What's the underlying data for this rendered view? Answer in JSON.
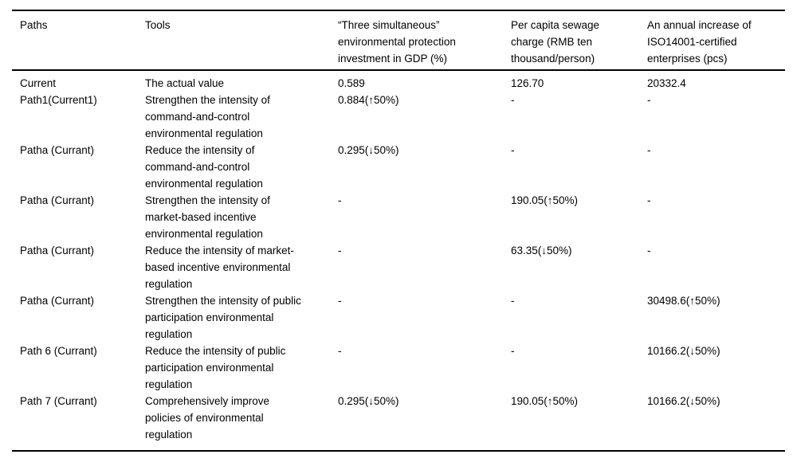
{
  "table": {
    "columns": [
      {
        "label": "Paths"
      },
      {
        "label": "Tools"
      },
      {
        "label": "“Three simultaneous” environmental protection investment in GDP (%)"
      },
      {
        "label": "Per capita sewage charge (RMB ten thousand/person)"
      },
      {
        "label": "An annual increase of ISO14001-certified enterprises (pcs)"
      }
    ],
    "rows": [
      {
        "path": "Current",
        "tool": "The actual value",
        "gdp": "0.589",
        "sewage": "126.70",
        "iso": "20332.4"
      },
      {
        "path": "Path1(Current1)",
        "tool": "Strengthen the intensity of command-and-control environmental regulation",
        "gdp": "0.884(↑50%)",
        "sewage": "-",
        "iso": "-"
      },
      {
        "path": "Patha (Currant)",
        "tool": "Reduce the intensity of command-and-control environmental regulation",
        "gdp": "0.295(↓50%)",
        "sewage": "-",
        "iso": "-"
      },
      {
        "path": "Patha (Currant)",
        "tool": "Strengthen the intensity of market-based incentive environmental regulation",
        "gdp": "-",
        "sewage": "190.05(↑50%)",
        "iso": "-"
      },
      {
        "path": "Patha (Currant)",
        "tool": "Reduce the intensity of market-based incentive environmental regulation",
        "gdp": "-",
        "sewage": "63.35(↓50%)",
        "iso": "-"
      },
      {
        "path": "Patha (Currant)",
        "tool": "Strengthen the intensity of public participation environmental regulation",
        "gdp": "-",
        "sewage": "-",
        "iso": "30498.6(↑50%)"
      },
      {
        "path": "Path 6 (Currant)",
        "tool": "Reduce the intensity of public participation environmental regulation",
        "gdp": "-",
        "sewage": "-",
        "iso": "10166.2(↓50%)"
      },
      {
        "path": "Path 7 (Currant)",
        "tool": "Comprehensively improve policies of environmental regulation",
        "gdp": "0.295(↓50%)",
        "sewage": "190.05(↑50%)",
        "iso": "10166.2(↓50%)"
      }
    ]
  }
}
